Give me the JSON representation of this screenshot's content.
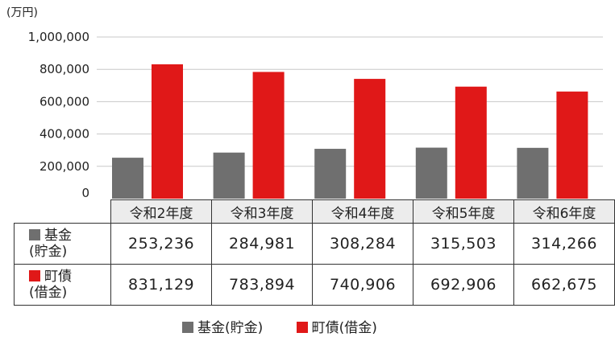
{
  "colors": {
    "fund": "#6f6f6f",
    "debt": "#e01818",
    "grid": "#c8c8c8"
  },
  "chart_data": {
    "type": "bar",
    "unit": "(万円)",
    "categories": [
      "令和2年度",
      "令和3年度",
      "令和4年度",
      "令和5年度",
      "令和6年度"
    ],
    "series": [
      {
        "name": "基金(貯金)",
        "values": [
          253236,
          284981,
          308284,
          315503,
          314266
        ]
      },
      {
        "name": "町債(借金)",
        "values": [
          831129,
          783894,
          740906,
          692906,
          662675
        ]
      }
    ],
    "ylim": [
      0,
      1000000
    ],
    "yticks": [
      0,
      200000,
      400000,
      600000,
      800000,
      1000000
    ],
    "ytick_labels": [
      "0",
      "200,000",
      "400,000",
      "600,000",
      "800,000",
      "1,000,000"
    ],
    "grid": true,
    "legend_position": "bottom"
  },
  "table": {
    "rows": [
      {
        "label_line1": "基金",
        "label_line2": "(貯金)",
        "values": [
          "253,236",
          "284,981",
          "308,284",
          "315,503",
          "314,266"
        ]
      },
      {
        "label_line1": "町債",
        "label_line2": "(借金)",
        "values": [
          "831,129",
          "783,894",
          "740,906",
          "692,906",
          "662,675"
        ]
      }
    ]
  },
  "legend": {
    "fund_label": "基金(貯金)",
    "debt_label": "町債(借金)"
  }
}
